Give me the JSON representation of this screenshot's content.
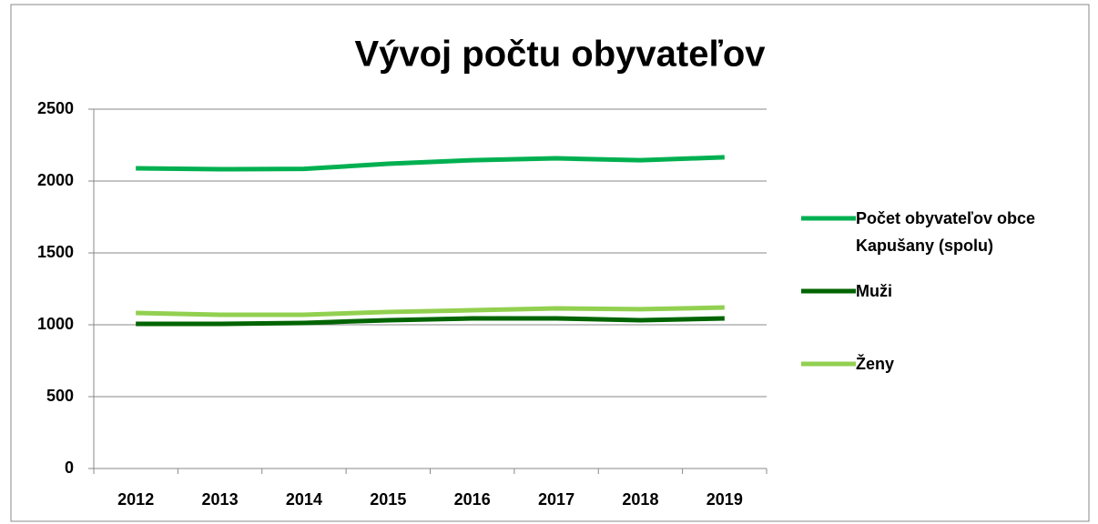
{
  "chart_data": {
    "type": "line",
    "title": "Vývoj počtu obyvateľov",
    "categories": [
      "2012",
      "2013",
      "2014",
      "2015",
      "2016",
      "2017",
      "2018",
      "2019"
    ],
    "series": [
      {
        "name": "Počet obyvateľov obce Kapušany (spolu)",
        "color": "#00b050",
        "values": [
          2089,
          2082,
          2085,
          2120,
          2145,
          2158,
          2145,
          2165
        ]
      },
      {
        "name": "Muži",
        "color": "#006400",
        "values": [
          1006,
          1006,
          1013,
          1032,
          1044,
          1044,
          1032,
          1044
        ]
      },
      {
        "name": "Ženy",
        "color": "#92d050",
        "values": [
          1082,
          1070,
          1070,
          1089,
          1101,
          1114,
          1108,
          1120
        ]
      }
    ],
    "ylim": [
      0,
      2500
    ],
    "yticks": [
      0,
      500,
      1000,
      1500,
      2000,
      2500
    ],
    "grid": true,
    "legend": "right"
  }
}
